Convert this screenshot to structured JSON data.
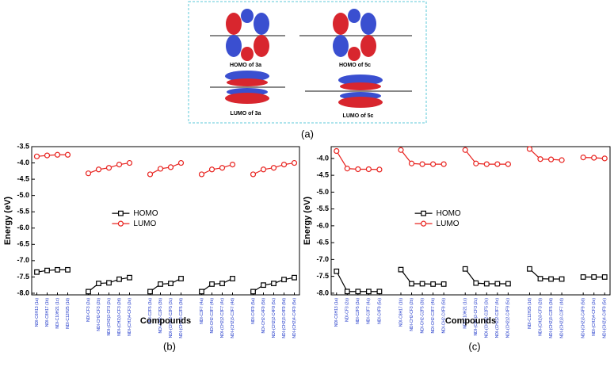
{
  "panel_a": {
    "label": "(a)",
    "captions": [
      "HOMO of 3a",
      "HOMO of 5c",
      "LUMO of 3a",
      "LUMO of 5c"
    ]
  },
  "chart_data": [
    {
      "type": "line",
      "panel_label": "(b)",
      "x_label": "Compounds",
      "y_label": "Energy (eV)",
      "legend": "center",
      "categories": [
        "NDI-C6H13 (1a)",
        "NDI-C8H17 (1b)",
        "NDI-C10H21 (1c)",
        "NDI-C12H25 (1d)",
        null,
        "NDI-CF3 (2a)",
        "NDI-CH2-CF3 (2b)",
        "NDI-(CH2)2-CF3 (2c)",
        "NDI-(CH2)3-CF3 (2d)",
        "NDI-(CH2)4-CF3 (2e)",
        null,
        "NDI-C2F5 (3a)",
        "NDI-CH2-C2F5 (3b)",
        "NDI-(CH2)2-C2F5 (3c)",
        "NDI-(CH2)3-C2F5 (3d)",
        null,
        "NDI-C3F7 (4a)",
        "NDI-CH2-C3F7 (4b)",
        "NDI-(CH2)2-C3F7 (4c)",
        "NDI-(CH2)3-C3F7 (4d)",
        null,
        "NDI-C4F9 (5a)",
        "NDI-CH2-C4F9 (5b)",
        "NDI-(CH2)2-C4F9 (5c)",
        "NDI-(CH2)3-C4F9 (5d)",
        "NDI-(CH2)4-C4F9 (5e)"
      ],
      "series": [
        {
          "name": "HOMO",
          "color": "#000000",
          "marker": "square",
          "values": [
            -7.35,
            -7.3,
            -7.28,
            -7.28,
            null,
            -7.95,
            -7.7,
            -7.68,
            -7.57,
            -7.52,
            null,
            -7.95,
            -7.72,
            -7.7,
            -7.55,
            null,
            -7.95,
            -7.72,
            -7.7,
            -7.55,
            null,
            -7.95,
            -7.75,
            -7.7,
            -7.58,
            -7.52
          ]
        },
        {
          "name": "LUMO",
          "color": "#e8231f",
          "marker": "circle",
          "values": [
            -3.8,
            -3.77,
            -3.75,
            -3.75,
            null,
            -4.32,
            -4.2,
            -4.15,
            -4.05,
            -4.0,
            null,
            -4.35,
            -4.18,
            -4.13,
            -4.0,
            null,
            -4.35,
            -4.2,
            -4.15,
            -4.05,
            null,
            -4.35,
            -4.2,
            -4.15,
            -4.05,
            -4.0
          ]
        }
      ],
      "ylim": [
        -8.05,
        -3.5
      ],
      "yticks": [
        -3.5,
        {
          "value": -4,
          "label": "-4.0"
        },
        -4.5,
        {
          "value": -5,
          "label": "-5.0"
        },
        -5.5,
        {
          "value": -6,
          "label": "-6.0"
        },
        -6.5,
        {
          "value": -7,
          "label": "-7.0"
        },
        -7.5,
        {
          "value": -8,
          "label": "-8.0"
        }
      ]
    },
    {
      "type": "line",
      "panel_label": "(c)",
      "x_label": "Compounds",
      "y_label": "Energy (eV)",
      "legend": "center",
      "categories": [
        "NDI-C6H13 (1a)",
        "NDI-CF3 (2a)",
        "NDI-C2F5 (3a)",
        "NDI-C3F7 (4a)",
        "NDI-C4F9 (5a)",
        null,
        "NDI-C8H17 (1b)",
        "NDI-CH2-CF3 (2b)",
        "NDI-CH2-C2F5 (3b)",
        "NDI-CH2-C3F7 (4b)",
        "NDI-CH2-C4F9 (5b)",
        null,
        "NDI-C10H21 (1c)",
        "NDI-(CH2)2-CF3 (2c)",
        "NDI-(CH2)2-C2F5 (3c)",
        "NDI-(CH2)2-C3F7 (4c)",
        "NDI-(CH2)2-C4F9 (5c)",
        null,
        "NDI-C12H25 (1d)",
        "NDI-(CH2)3-CF3 (2d)",
        "NDI-(CH2)3-C2F5 (3d)",
        "NDI-(CH2)3-C3F7 (4d)",
        null,
        "NDI-(CH2)3-C4F9 (5d)",
        "NDI-(CH2)4-CF3 (2e)",
        "NDI-(CH2)4-C4F9 (5e)"
      ],
      "series": [
        {
          "name": "HOMO",
          "color": "#000000",
          "marker": "square",
          "values": [
            -7.35,
            -7.95,
            -7.95,
            -7.95,
            -7.95,
            null,
            -7.3,
            -7.72,
            -7.72,
            -7.73,
            -7.73,
            null,
            -7.28,
            -7.7,
            -7.72,
            -7.72,
            -7.72,
            null,
            -7.28,
            -7.57,
            -7.58,
            -7.58,
            null,
            -7.52,
            -7.52,
            -7.52
          ]
        },
        {
          "name": "LUMO",
          "color": "#e8231f",
          "marker": "circle",
          "values": [
            -3.78,
            -4.3,
            -4.32,
            -4.32,
            -4.33,
            null,
            -3.75,
            -4.15,
            -4.17,
            -4.17,
            -4.17,
            null,
            -3.75,
            -4.15,
            -4.17,
            -4.17,
            -4.17,
            null,
            -3.72,
            -4.02,
            -4.03,
            -4.05,
            null,
            -3.97,
            -3.98,
            -4.0
          ]
        }
      ],
      "ylim": [
        -8.05,
        -3.65
      ],
      "yticks": [
        {
          "value": -4,
          "label": "-4.0"
        },
        -4.5,
        {
          "value": -5,
          "label": "-5.0"
        },
        -5.5,
        {
          "value": -6,
          "label": "-6.0"
        },
        -6.5,
        {
          "value": -7,
          "label": "-7.0"
        },
        -7.5,
        {
          "value": -8,
          "label": "-8.0"
        }
      ]
    }
  ]
}
